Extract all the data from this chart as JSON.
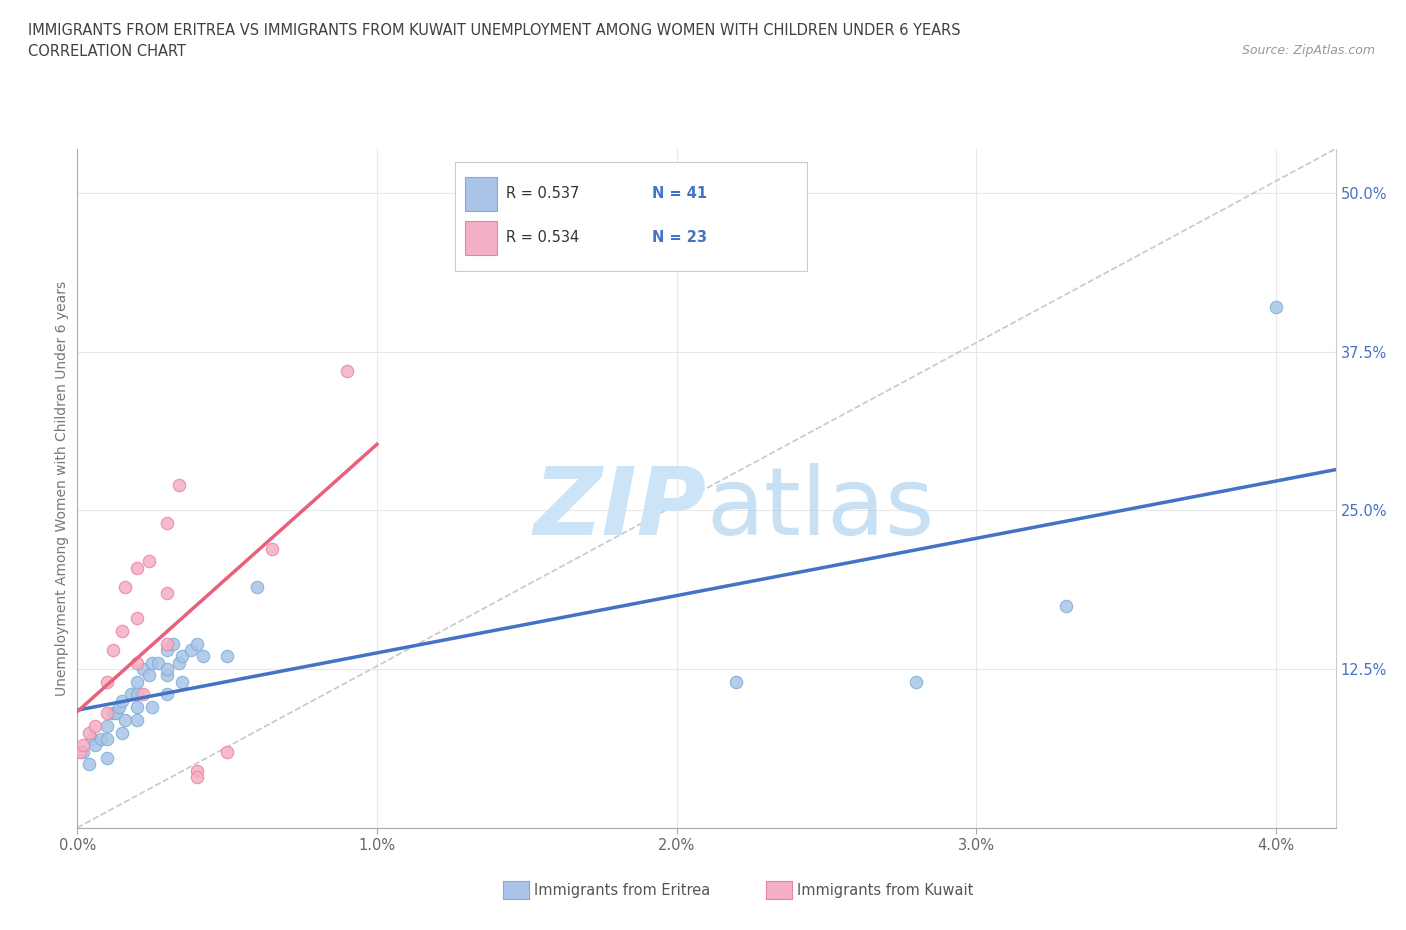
{
  "title_line1": "IMMIGRANTS FROM ERITREA VS IMMIGRANTS FROM KUWAIT UNEMPLOYMENT AMONG WOMEN WITH CHILDREN UNDER 6 YEARS",
  "title_line2": "CORRELATION CHART",
  "source": "Source: ZipAtlas.com",
  "xlabel_ticks": [
    "0.0%",
    "1.0%",
    "2.0%",
    "3.0%",
    "4.0%"
  ],
  "xlabel_vals": [
    0.0,
    0.01,
    0.02,
    0.03,
    0.04
  ],
  "ylabel_ticks": [
    "",
    "12.5%",
    "25.0%",
    "37.5%",
    "50.0%"
  ],
  "ylabel_vals": [
    0.0,
    0.125,
    0.25,
    0.375,
    0.5
  ],
  "ylabel_label": "Unemployment Among Women with Children Under 6 years",
  "legend_label1": "Immigrants from Eritrea",
  "legend_label2": "Immigrants from Kuwait",
  "R1": "0.537",
  "N1": "41",
  "R2": "0.534",
  "N2": "23",
  "color_eritrea": "#aac4e8",
  "color_eritrea_edge": "#7aaed6",
  "color_kuwait": "#f4b0c4",
  "color_kuwait_edge": "#f080a0",
  "color_line_eritrea": "#4472c4",
  "color_line_kuwait": "#e8607a",
  "color_ref_line": "#c8c8c8",
  "color_title": "#404040",
  "color_source": "#999999",
  "color_legend_text": "#333333",
  "color_RN_blue": "#4472c4",
  "watermark_color": "#cce4f8",
  "background_color": "#ffffff",
  "grid_color": "#e8e8e8",
  "scatter_eritrea_x": [
    0.0002,
    0.0004,
    0.0005,
    0.0006,
    0.0008,
    0.001,
    0.001,
    0.001,
    0.0012,
    0.0013,
    0.0014,
    0.0015,
    0.0015,
    0.0016,
    0.0018,
    0.002,
    0.002,
    0.002,
    0.002,
    0.0022,
    0.0024,
    0.0025,
    0.0025,
    0.0027,
    0.003,
    0.003,
    0.003,
    0.003,
    0.0032,
    0.0034,
    0.0035,
    0.0035,
    0.0038,
    0.004,
    0.0042,
    0.005,
    0.006,
    0.022,
    0.028,
    0.033,
    0.04
  ],
  "scatter_eritrea_y": [
    0.06,
    0.05,
    0.07,
    0.065,
    0.07,
    0.055,
    0.08,
    0.07,
    0.09,
    0.09,
    0.095,
    0.1,
    0.075,
    0.085,
    0.105,
    0.095,
    0.105,
    0.085,
    0.115,
    0.125,
    0.12,
    0.13,
    0.095,
    0.13,
    0.12,
    0.14,
    0.105,
    0.125,
    0.145,
    0.13,
    0.135,
    0.115,
    0.14,
    0.145,
    0.135,
    0.135,
    0.19,
    0.115,
    0.115,
    0.175,
    0.41
  ],
  "scatter_kuwait_x": [
    0.0001,
    0.0002,
    0.0004,
    0.0006,
    0.001,
    0.001,
    0.0012,
    0.0015,
    0.0016,
    0.002,
    0.002,
    0.002,
    0.0022,
    0.0024,
    0.003,
    0.003,
    0.003,
    0.0034,
    0.004,
    0.004,
    0.005,
    0.0065,
    0.009
  ],
  "scatter_kuwait_y": [
    0.06,
    0.065,
    0.075,
    0.08,
    0.09,
    0.115,
    0.14,
    0.155,
    0.19,
    0.165,
    0.205,
    0.13,
    0.105,
    0.21,
    0.185,
    0.145,
    0.24,
    0.27,
    0.045,
    0.04,
    0.06,
    0.22,
    0.36
  ],
  "xlim": [
    0.0,
    0.042
  ],
  "ylim": [
    0.0,
    0.535
  ],
  "trend_eritrea_x_start": 0.0,
  "trend_eritrea_x_end": 0.042,
  "trend_kuwait_x_start": 0.0,
  "trend_kuwait_x_end": 0.01
}
